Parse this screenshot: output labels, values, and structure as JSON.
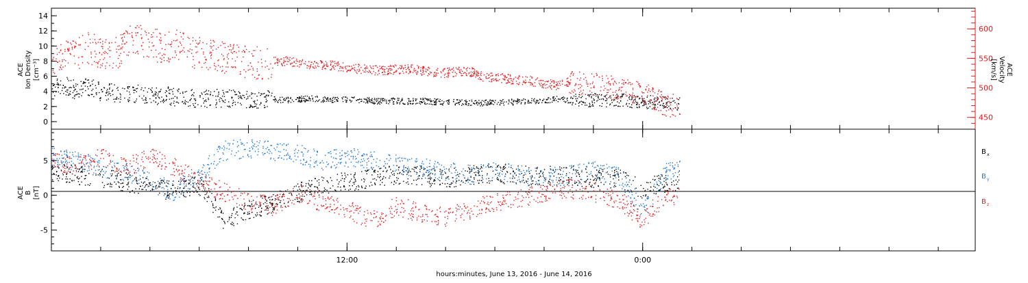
{
  "chart_data": [
    {
      "type": "scatter",
      "panel": "top",
      "ylabel_left": [
        "ACE",
        "Ion Density",
        "[cm⁻³]"
      ],
      "ylabel_right": [
        "ACE",
        "Velocity",
        "[km/s]"
      ],
      "left_axis": {
        "range": [
          -1,
          15
        ],
        "ticks": [
          0,
          2,
          4,
          6,
          8,
          10,
          12,
          14
        ],
        "color": "#000000"
      },
      "right_axis": {
        "range": [
          430,
          635
        ],
        "ticks": [
          450,
          500,
          550,
          600
        ],
        "color": "#e41a1c"
      },
      "series": [
        {
          "color": "#000000",
          "axis": "left",
          "points": [
            [
              0.0,
              4.4
            ],
            [
              0.5,
              4.9
            ],
            [
              1.0,
              4.2
            ],
            [
              1.5,
              4.7
            ],
            [
              2.0,
              4.0
            ],
            [
              2.5,
              3.9
            ],
            [
              3.0,
              3.6
            ],
            [
              3.5,
              3.7
            ],
            [
              4.0,
              3.4
            ],
            [
              4.5,
              3.6
            ],
            [
              5.0,
              3.3
            ],
            [
              5.5,
              3.2
            ],
            [
              6.0,
              3.0
            ],
            [
              6.5,
              3.1
            ],
            [
              7.0,
              3.2
            ],
            [
              7.5,
              3.0
            ],
            [
              8.0,
              3.1
            ],
            [
              8.5,
              2.9
            ],
            [
              9.0,
              3.0
            ],
            [
              9.5,
              2.9
            ],
            [
              10.0,
              3.0
            ],
            [
              10.5,
              3.1
            ],
            [
              11.0,
              3.0
            ],
            [
              11.5,
              2.9
            ],
            [
              12.0,
              3.0
            ],
            [
              12.5,
              2.9
            ],
            [
              13.0,
              2.8
            ],
            [
              13.5,
              2.7
            ],
            [
              14.0,
              2.8
            ],
            [
              14.5,
              2.7
            ],
            [
              15.0,
              2.8
            ],
            [
              15.5,
              2.7
            ],
            [
              16.0,
              2.6
            ],
            [
              16.5,
              2.6
            ],
            [
              17.0,
              2.6
            ],
            [
              17.5,
              2.5
            ],
            [
              18.0,
              2.6
            ],
            [
              18.5,
              2.6
            ],
            [
              19.0,
              2.7
            ],
            [
              19.5,
              2.8
            ],
            [
              20.0,
              2.9
            ],
            [
              20.5,
              3.0
            ],
            [
              21.0,
              2.9
            ],
            [
              21.5,
              2.8
            ],
            [
              22.0,
              2.9
            ],
            [
              22.5,
              2.8
            ],
            [
              23.0,
              2.9
            ],
            [
              23.5,
              2.8
            ],
            [
              24.0,
              2.7
            ],
            [
              24.5,
              2.6
            ],
            [
              25.0,
              2.5
            ],
            [
              25.5,
              2.4
            ]
          ]
        },
        {
          "color": "#e41a1c",
          "axis": "right",
          "points": [
            [
              0.0,
              550
            ],
            [
              0.5,
              560
            ],
            [
              1.0,
              555
            ],
            [
              1.5,
              570
            ],
            [
              2.0,
              560
            ],
            [
              2.5,
              555
            ],
            [
              3.0,
              575
            ],
            [
              3.5,
              585
            ],
            [
              4.0,
              575
            ],
            [
              4.5,
              570
            ],
            [
              5.0,
              572
            ],
            [
              5.5,
              565
            ],
            [
              6.0,
              560
            ],
            [
              6.5,
              555
            ],
            [
              7.0,
              550
            ],
            [
              7.5,
              548
            ],
            [
              8.0,
              545
            ],
            [
              8.5,
              543
            ],
            [
              9.0,
              545
            ],
            [
              9.5,
              546
            ],
            [
              10.0,
              543
            ],
            [
              10.5,
              538
            ],
            [
              11.0,
              540
            ],
            [
              11.5,
              538
            ],
            [
              12.0,
              535
            ],
            [
              12.5,
              533
            ],
            [
              13.0,
              530
            ],
            [
              13.5,
              531
            ],
            [
              14.0,
              532
            ],
            [
              14.5,
              533
            ],
            [
              15.0,
              530
            ],
            [
              15.5,
              528
            ],
            [
              16.0,
              526
            ],
            [
              16.5,
              529
            ],
            [
              17.0,
              528
            ],
            [
              17.5,
              520
            ],
            [
              18.0,
              518
            ],
            [
              18.5,
              516
            ],
            [
              19.0,
              514
            ],
            [
              19.5,
              512
            ],
            [
              20.0,
              508
            ],
            [
              20.5,
              505
            ],
            [
              21.0,
              510
            ],
            [
              21.5,
              508
            ],
            [
              22.0,
              507
            ],
            [
              22.5,
              503
            ],
            [
              23.0,
              498
            ],
            [
              23.5,
              495
            ],
            [
              24.0,
              492
            ],
            [
              24.5,
              480
            ],
            [
              25.0,
              472
            ],
            [
              25.5,
              470
            ]
          ]
        }
      ]
    },
    {
      "type": "scatter",
      "panel": "bottom",
      "ylabel_left": [
        "ACE",
        "B",
        "[nT]"
      ],
      "left_axis": {
        "range": [
          -8,
          9.5
        ],
        "ticks": [
          -5,
          0,
          5
        ]
      },
      "legend": [
        {
          "label": "B",
          "sub": "x",
          "color": "#000000"
        },
        {
          "label": "B",
          "sub": "y",
          "color": "#1f78d4"
        },
        {
          "label": "B",
          "sub": "z",
          "color": "#e41a1c"
        }
      ],
      "series": [
        {
          "color": "#000000",
          "points": [
            [
              0.0,
              3.5
            ],
            [
              1.0,
              3.0
            ],
            [
              2.0,
              2.5
            ],
            [
              3.0,
              2.0
            ],
            [
              4.0,
              1.0
            ],
            [
              5.0,
              0.8
            ],
            [
              6.0,
              1.5
            ],
            [
              7.0,
              -3.5
            ],
            [
              8.0,
              -2.0
            ],
            [
              9.0,
              -1.0
            ],
            [
              10.0,
              0.5
            ],
            [
              11.0,
              1.5
            ],
            [
              12.0,
              2.0
            ],
            [
              13.0,
              2.5
            ],
            [
              14.0,
              3.0
            ],
            [
              15.0,
              2.8
            ],
            [
              16.0,
              2.5
            ],
            [
              17.0,
              3.0
            ],
            [
              18.0,
              3.2
            ],
            [
              19.0,
              3.0
            ],
            [
              20.0,
              2.8
            ],
            [
              21.0,
              3.0
            ],
            [
              22.0,
              2.5
            ],
            [
              23.0,
              2.5
            ],
            [
              24.0,
              1.0
            ],
            [
              25.0,
              2.0
            ],
            [
              25.5,
              2.2
            ]
          ]
        },
        {
          "color": "#1f78d4",
          "points": [
            [
              0.0,
              5.5
            ],
            [
              1.0,
              5.0
            ],
            [
              2.0,
              4.0
            ],
            [
              3.0,
              3.5
            ],
            [
              4.0,
              2.0
            ],
            [
              5.0,
              0.5
            ],
            [
              6.0,
              3.0
            ],
            [
              7.0,
              6.5
            ],
            [
              8.0,
              6.8
            ],
            [
              9.0,
              6.5
            ],
            [
              10.0,
              6.0
            ],
            [
              11.0,
              5.0
            ],
            [
              12.0,
              5.5
            ],
            [
              13.0,
              5.0
            ],
            [
              14.0,
              4.5
            ],
            [
              15.0,
              4.0
            ],
            [
              16.0,
              3.5
            ],
            [
              17.0,
              3.0
            ],
            [
              18.0,
              3.5
            ],
            [
              19.0,
              3.0
            ],
            [
              20.0,
              2.5
            ],
            [
              21.0,
              3.0
            ],
            [
              22.0,
              3.5
            ],
            [
              23.0,
              3.0
            ],
            [
              24.0,
              -2.0
            ],
            [
              25.0,
              3.5
            ],
            [
              25.5,
              4.0
            ]
          ]
        },
        {
          "color": "#e41a1c",
          "points": [
            [
              0.0,
              5.0
            ],
            [
              1.0,
              4.0
            ],
            [
              2.0,
              5.5
            ],
            [
              3.0,
              4.0
            ],
            [
              4.0,
              5.5
            ],
            [
              5.0,
              4.0
            ],
            [
              6.0,
              2.0
            ],
            [
              7.0,
              0.5
            ],
            [
              8.0,
              -1.0
            ],
            [
              9.0,
              -1.5
            ],
            [
              10.0,
              0.5
            ],
            [
              11.0,
              -1.0
            ],
            [
              12.0,
              -2.0
            ],
            [
              13.0,
              -3.5
            ],
            [
              14.0,
              -1.5
            ],
            [
              15.0,
              -2.5
            ],
            [
              16.0,
              -3.0
            ],
            [
              17.0,
              -2.0
            ],
            [
              18.0,
              -1.0
            ],
            [
              19.0,
              -0.5
            ],
            [
              20.0,
              0.5
            ],
            [
              21.0,
              1.0
            ],
            [
              22.0,
              0.5
            ],
            [
              23.0,
              -0.5
            ],
            [
              24.0,
              -3.5
            ],
            [
              25.0,
              0.5
            ],
            [
              25.5,
              -0.5
            ]
          ]
        }
      ]
    }
  ],
  "x_axis": {
    "range_hours": [
      0,
      37.5
    ],
    "major_ticks": [
      {
        "hour": 12,
        "label": "12:00"
      },
      {
        "hour": 24,
        "label": "0:00"
      }
    ],
    "minor_tick_step_hours": 2,
    "xlabel": "hours:minutes, June 13, 2016 - June 14, 2016"
  }
}
